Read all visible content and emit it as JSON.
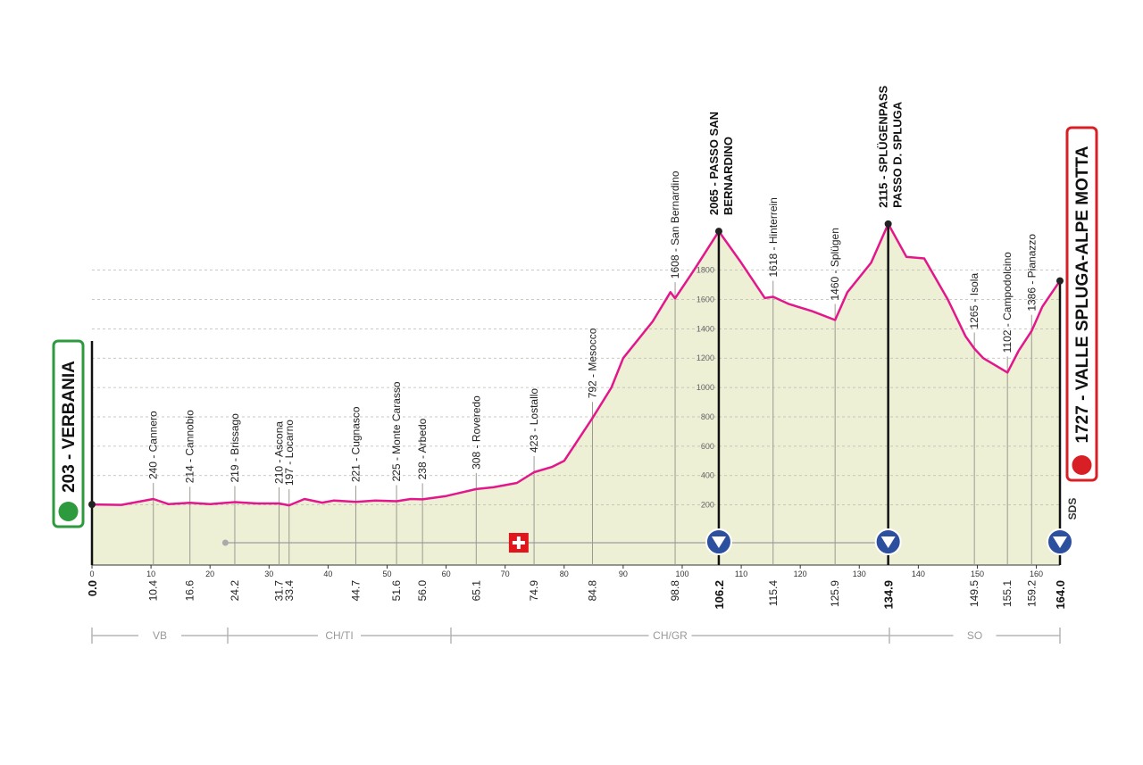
{
  "chart_data": {
    "type": "area",
    "x": [
      0,
      5,
      10.4,
      13,
      16.6,
      20,
      24.2,
      28,
      31.7,
      33.4,
      36,
      39,
      41,
      44.7,
      48,
      51.6,
      54,
      56,
      60,
      65.1,
      68,
      72,
      74.9,
      78,
      80,
      84.8,
      88,
      90,
      95,
      98,
      98.8,
      102,
      106.2,
      110,
      114,
      115.4,
      118,
      122,
      125.9,
      128,
      132,
      134.9,
      138,
      141,
      145,
      148,
      149.5,
      151,
      155.1,
      157,
      159.2,
      161,
      164
    ],
    "values": [
      203,
      200,
      240,
      205,
      214,
      205,
      219,
      210,
      210,
      197,
      240,
      215,
      230,
      221,
      230,
      225,
      240,
      238,
      260,
      308,
      320,
      350,
      423,
      460,
      500,
      792,
      1000,
      1200,
      1450,
      1650,
      1608,
      1800,
      2065,
      1850,
      1610,
      1618,
      1570,
      1520,
      1460,
      1650,
      1850,
      2115,
      1890,
      1880,
      1600,
      1350,
      1265,
      1200,
      1102,
      1250,
      1386,
      1550,
      1727
    ],
    "color": "#e2178c",
    "xlim": [
      0,
      164
    ],
    "ylim": [
      -210,
      2400
    ],
    "xticks": [
      0,
      10,
      20,
      30,
      40,
      50,
      60,
      70,
      80,
      90,
      100,
      110,
      120,
      130,
      140,
      150,
      160
    ],
    "yticks": [
      200,
      400,
      600,
      800,
      1000,
      1200,
      1400,
      1600,
      1800
    ],
    "grid": true,
    "start": {
      "label": "203 - VERBANIA",
      "km": {
        "value": 0,
        "label": "0.0"
      }
    },
    "finish": {
      "label": "1727 - VALLE SPLUGA-ALPE MOTTA",
      "km": {
        "value": 164,
        "label": "164.0"
      }
    },
    "climbs": [
      {
        "label": [
          "2065 - PASSO SAN",
          "BERNARDINO"
        ],
        "km": 106.2
      },
      {
        "label": [
          "2115 - SPLÜGENPASS",
          "PASSO D. SPLUGA"
        ],
        "km": 134.9
      }
    ],
    "waypoints": [
      {
        "label": "240 - Cannero",
        "km": 10.4
      },
      {
        "label": "214 - Cannobio",
        "km": 16.6
      },
      {
        "label": "219 - Brissago",
        "km": 24.2
      },
      {
        "label": "210 - Ascona",
        "km": 31.7
      },
      {
        "label": "197 - Locarno",
        "km": 33.4
      },
      {
        "label": "221 - Cugnasco",
        "km": 44.7
      },
      {
        "label": "225 - Monte Carasso",
        "km": 51.6
      },
      {
        "label": "238 - Arbedo",
        "km": {
          "value": 56,
          "label": "56.0"
        }
      },
      {
        "label": "308 - Roveredo",
        "km": 65.1
      },
      {
        "label": "423 - Lostallo",
        "km": 74.9
      },
      {
        "label": "792 - Mesocco",
        "km": 84.8
      },
      {
        "label": "1608 - San Bernardino",
        "km": 98.8
      },
      {
        "label": "1618 - Hinterrein",
        "km": 115.4
      },
      {
        "label": "1460 - Splügen",
        "km": 125.9
      },
      {
        "label": "1265 - Isola",
        "km": 149.5
      },
      {
        "label": "1102 - Campodolcino",
        "km": 155.1
      },
      {
        "label": "1386 - Pianazzo",
        "km": 159.2
      }
    ],
    "regions": [
      "VB",
      "CH/TI",
      "CH/GR",
      "SO"
    ],
    "sponsor": "SDS"
  }
}
